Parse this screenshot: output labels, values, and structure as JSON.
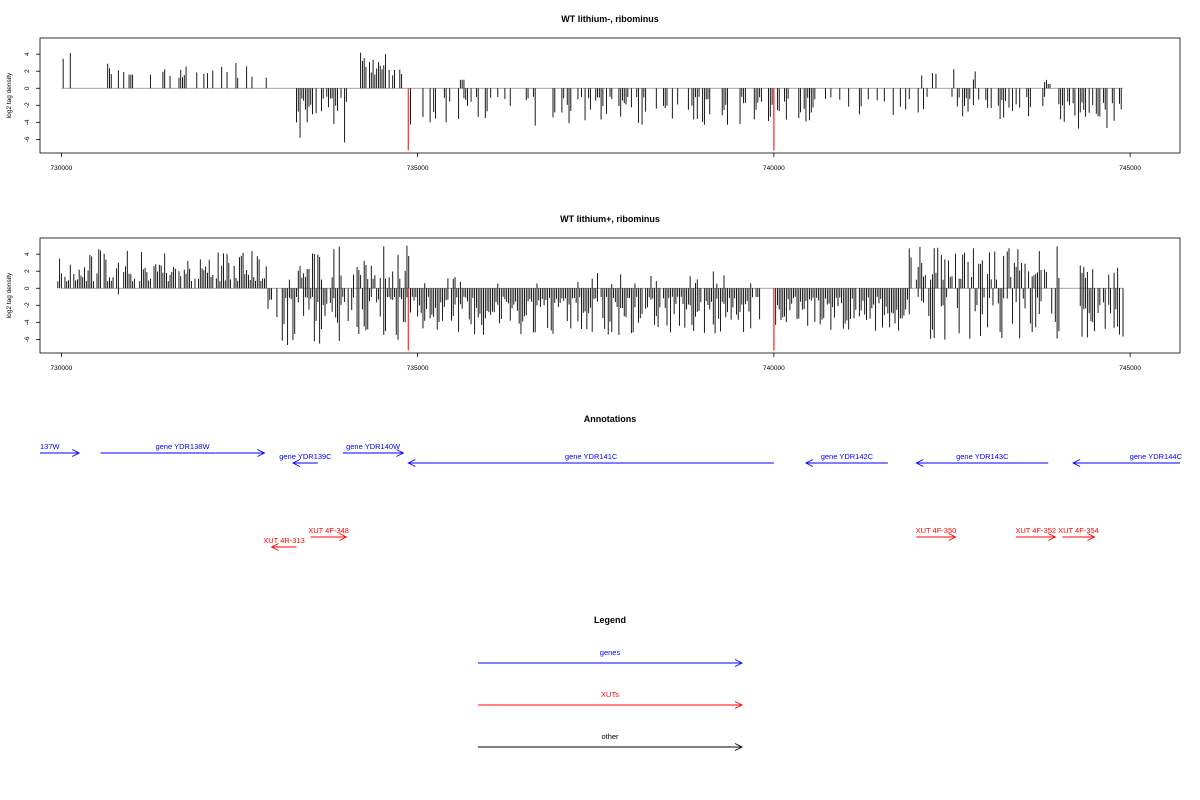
{
  "chart_data": [
    {
      "type": "bar",
      "title": "WT lithium-, ribominus",
      "ylabel": "log2 tag density",
      "x_range": [
        729700,
        745700
      ],
      "ylim": [
        -7.6,
        5.9
      ],
      "y_ticks": [
        -6,
        -4,
        -2,
        0,
        2,
        4
      ],
      "x_ticks": [
        730000,
        735000,
        740000,
        745000
      ],
      "bar_color": "#000000",
      "highlight_color": "#ff4040",
      "highlights": [
        {
          "x": 734870,
          "value": -7.3
        },
        {
          "x": 740000,
          "value": -7.3
        }
      ],
      "segments": [
        {
          "x_start": 730000,
          "x_end": 730200,
          "min": 2.5,
          "max": 4.5,
          "sign": 1,
          "density": 0.6
        },
        {
          "x_start": 730650,
          "x_end": 731000,
          "min": 1.5,
          "max": 3.5,
          "sign": 1,
          "density": 0.35
        },
        {
          "x_start": 730950,
          "x_end": 731000,
          "min": -1.6,
          "max": -1.6,
          "sign": -1,
          "density": 1.0
        },
        {
          "x_start": 731200,
          "x_end": 732900,
          "min": 1.0,
          "max": 3.2,
          "sign": 1,
          "density": 0.3
        },
        {
          "x_start": 733300,
          "x_end": 734000,
          "min": 1.0,
          "max": 6.5,
          "sign": -1,
          "density": 0.8
        },
        {
          "x_start": 734200,
          "x_end": 734800,
          "min": 1.5,
          "max": 4.3,
          "sign": 1,
          "density": 0.7
        },
        {
          "x_start": 734900,
          "x_end": 740500,
          "min": 1.0,
          "max": 4.5,
          "sign": -1,
          "density": 0.45
        },
        {
          "x_start": 735600,
          "x_end": 735650,
          "min": 1.0,
          "max": 1.0,
          "sign": 1,
          "density": 1.0
        },
        {
          "x_start": 740400,
          "x_end": 741900,
          "min": 1.0,
          "max": 3.2,
          "sign": -1,
          "density": 0.4
        },
        {
          "x_start": 742000,
          "x_end": 742900,
          "min": 1.0,
          "max": 2.4,
          "sign": 1,
          "density": 0.15
        },
        {
          "x_start": 742000,
          "x_end": 743800,
          "min": 1.0,
          "max": 4.0,
          "sign": -1,
          "density": 0.4
        },
        {
          "x_start": 743800,
          "x_end": 744000,
          "min": 0.5,
          "max": 1.3,
          "sign": 1,
          "density": 0.3
        },
        {
          "x_start": 744000,
          "x_end": 744900,
          "min": 1.5,
          "max": 5.0,
          "sign": -1,
          "density": 0.7
        }
      ]
    },
    {
      "type": "bar",
      "title": "WT lithium+, ribominus",
      "ylabel": "log2 tag density",
      "x_range": [
        729700,
        745700
      ],
      "ylim": [
        -7.6,
        5.9
      ],
      "y_ticks": [
        -6,
        -4,
        -2,
        0,
        2,
        4
      ],
      "x_ticks": [
        730000,
        735000,
        740000,
        745000
      ],
      "bar_color": "#000000",
      "highlight_color": "#ff4040",
      "highlights": [
        {
          "x": 734870,
          "value": -7.3
        },
        {
          "x": 740000,
          "value": -7.3
        }
      ],
      "segments": [
        {
          "x_start": 729950,
          "x_end": 732900,
          "min": 0.8,
          "max": 4.6,
          "sign": 1,
          "density": 0.85
        },
        {
          "x_start": 730300,
          "x_end": 731200,
          "min": 0.5,
          "max": 1.0,
          "sign": -1,
          "density": 0.05
        },
        {
          "x_start": 732900,
          "x_end": 734900,
          "min": 1.0,
          "max": 7.0,
          "sign": -1,
          "density": 0.85
        },
        {
          "x_start": 733200,
          "x_end": 734900,
          "min": 1.0,
          "max": 5.0,
          "sign": 1,
          "density": 0.5
        },
        {
          "x_start": 734900,
          "x_end": 739800,
          "min": 1.0,
          "max": 5.5,
          "sign": -1,
          "density": 0.95
        },
        {
          "x_start": 735000,
          "x_end": 739700,
          "min": 0.5,
          "max": 2.4,
          "sign": 1,
          "density": 0.12
        },
        {
          "x_start": 740000,
          "x_end": 741900,
          "min": 1.0,
          "max": 5.0,
          "sign": -1,
          "density": 0.95
        },
        {
          "x_start": 741900,
          "x_end": 744000,
          "min": 1.0,
          "max": 5.0,
          "sign": 1,
          "density": 0.7
        },
        {
          "x_start": 742000,
          "x_end": 744000,
          "min": 1.0,
          "max": 6.2,
          "sign": -1,
          "density": 0.6
        },
        {
          "x_start": 744300,
          "x_end": 744900,
          "min": 1.5,
          "max": 5.8,
          "sign": -1,
          "density": 0.8
        },
        {
          "x_start": 744300,
          "x_end": 744900,
          "min": 1.0,
          "max": 2.8,
          "sign": 1,
          "density": 0.4
        }
      ]
    }
  ],
  "annotations": {
    "title": "Annotations",
    "x_range": [
      729700,
      745700
    ],
    "genes_color": "#0000ff",
    "xuts_color": "#ff0000",
    "genes": [
      {
        "label": "137W",
        "start": 729700,
        "end": 730250,
        "strand": "+",
        "row": 0
      },
      {
        "label": "gene YDR138W",
        "start": 730550,
        "end": 732850,
        "strand": "+",
        "row": 0
      },
      {
        "label": "gene YDR139C",
        "start": 733250,
        "end": 733600,
        "strand": "-",
        "row": 1
      },
      {
        "label": "gene YDR140W",
        "start": 733950,
        "end": 734800,
        "strand": "+",
        "row": 0
      },
      {
        "label": "gene YDR141C",
        "start": 734870,
        "end": 740000,
        "strand": "-",
        "row": 1
      },
      {
        "label": "gene YDR142C",
        "start": 740450,
        "end": 741600,
        "strand": "-",
        "row": 1
      },
      {
        "label": "gene YDR143C",
        "start": 742000,
        "end": 743850,
        "strand": "-",
        "row": 1
      },
      {
        "label": "gene YDR144C",
        "start": 744200,
        "end": 745700,
        "strand": "-",
        "row": 1
      }
    ],
    "xuts": [
      {
        "label": "XUT 4R-313",
        "start": 732950,
        "end": 733300,
        "strand": "-",
        "row": 1
      },
      {
        "label": "XUT 4F-348",
        "start": 733500,
        "end": 734000,
        "strand": "+",
        "row": 0
      },
      {
        "label": "XUT 4F-350",
        "start": 742000,
        "end": 742550,
        "strand": "+",
        "row": 0
      },
      {
        "label": "XUT 4F-352",
        "start": 743400,
        "end": 743950,
        "strand": "+",
        "row": 0
      },
      {
        "label": "XUT 4F-354",
        "start": 744050,
        "end": 744500,
        "strand": "+",
        "row": 0
      }
    ]
  },
  "legend": {
    "title": "Legend",
    "items": [
      {
        "label": "genes",
        "color": "#0000ff"
      },
      {
        "label": "XUTs",
        "color": "#ff0000"
      },
      {
        "label": "other",
        "color": "#000000"
      }
    ]
  }
}
